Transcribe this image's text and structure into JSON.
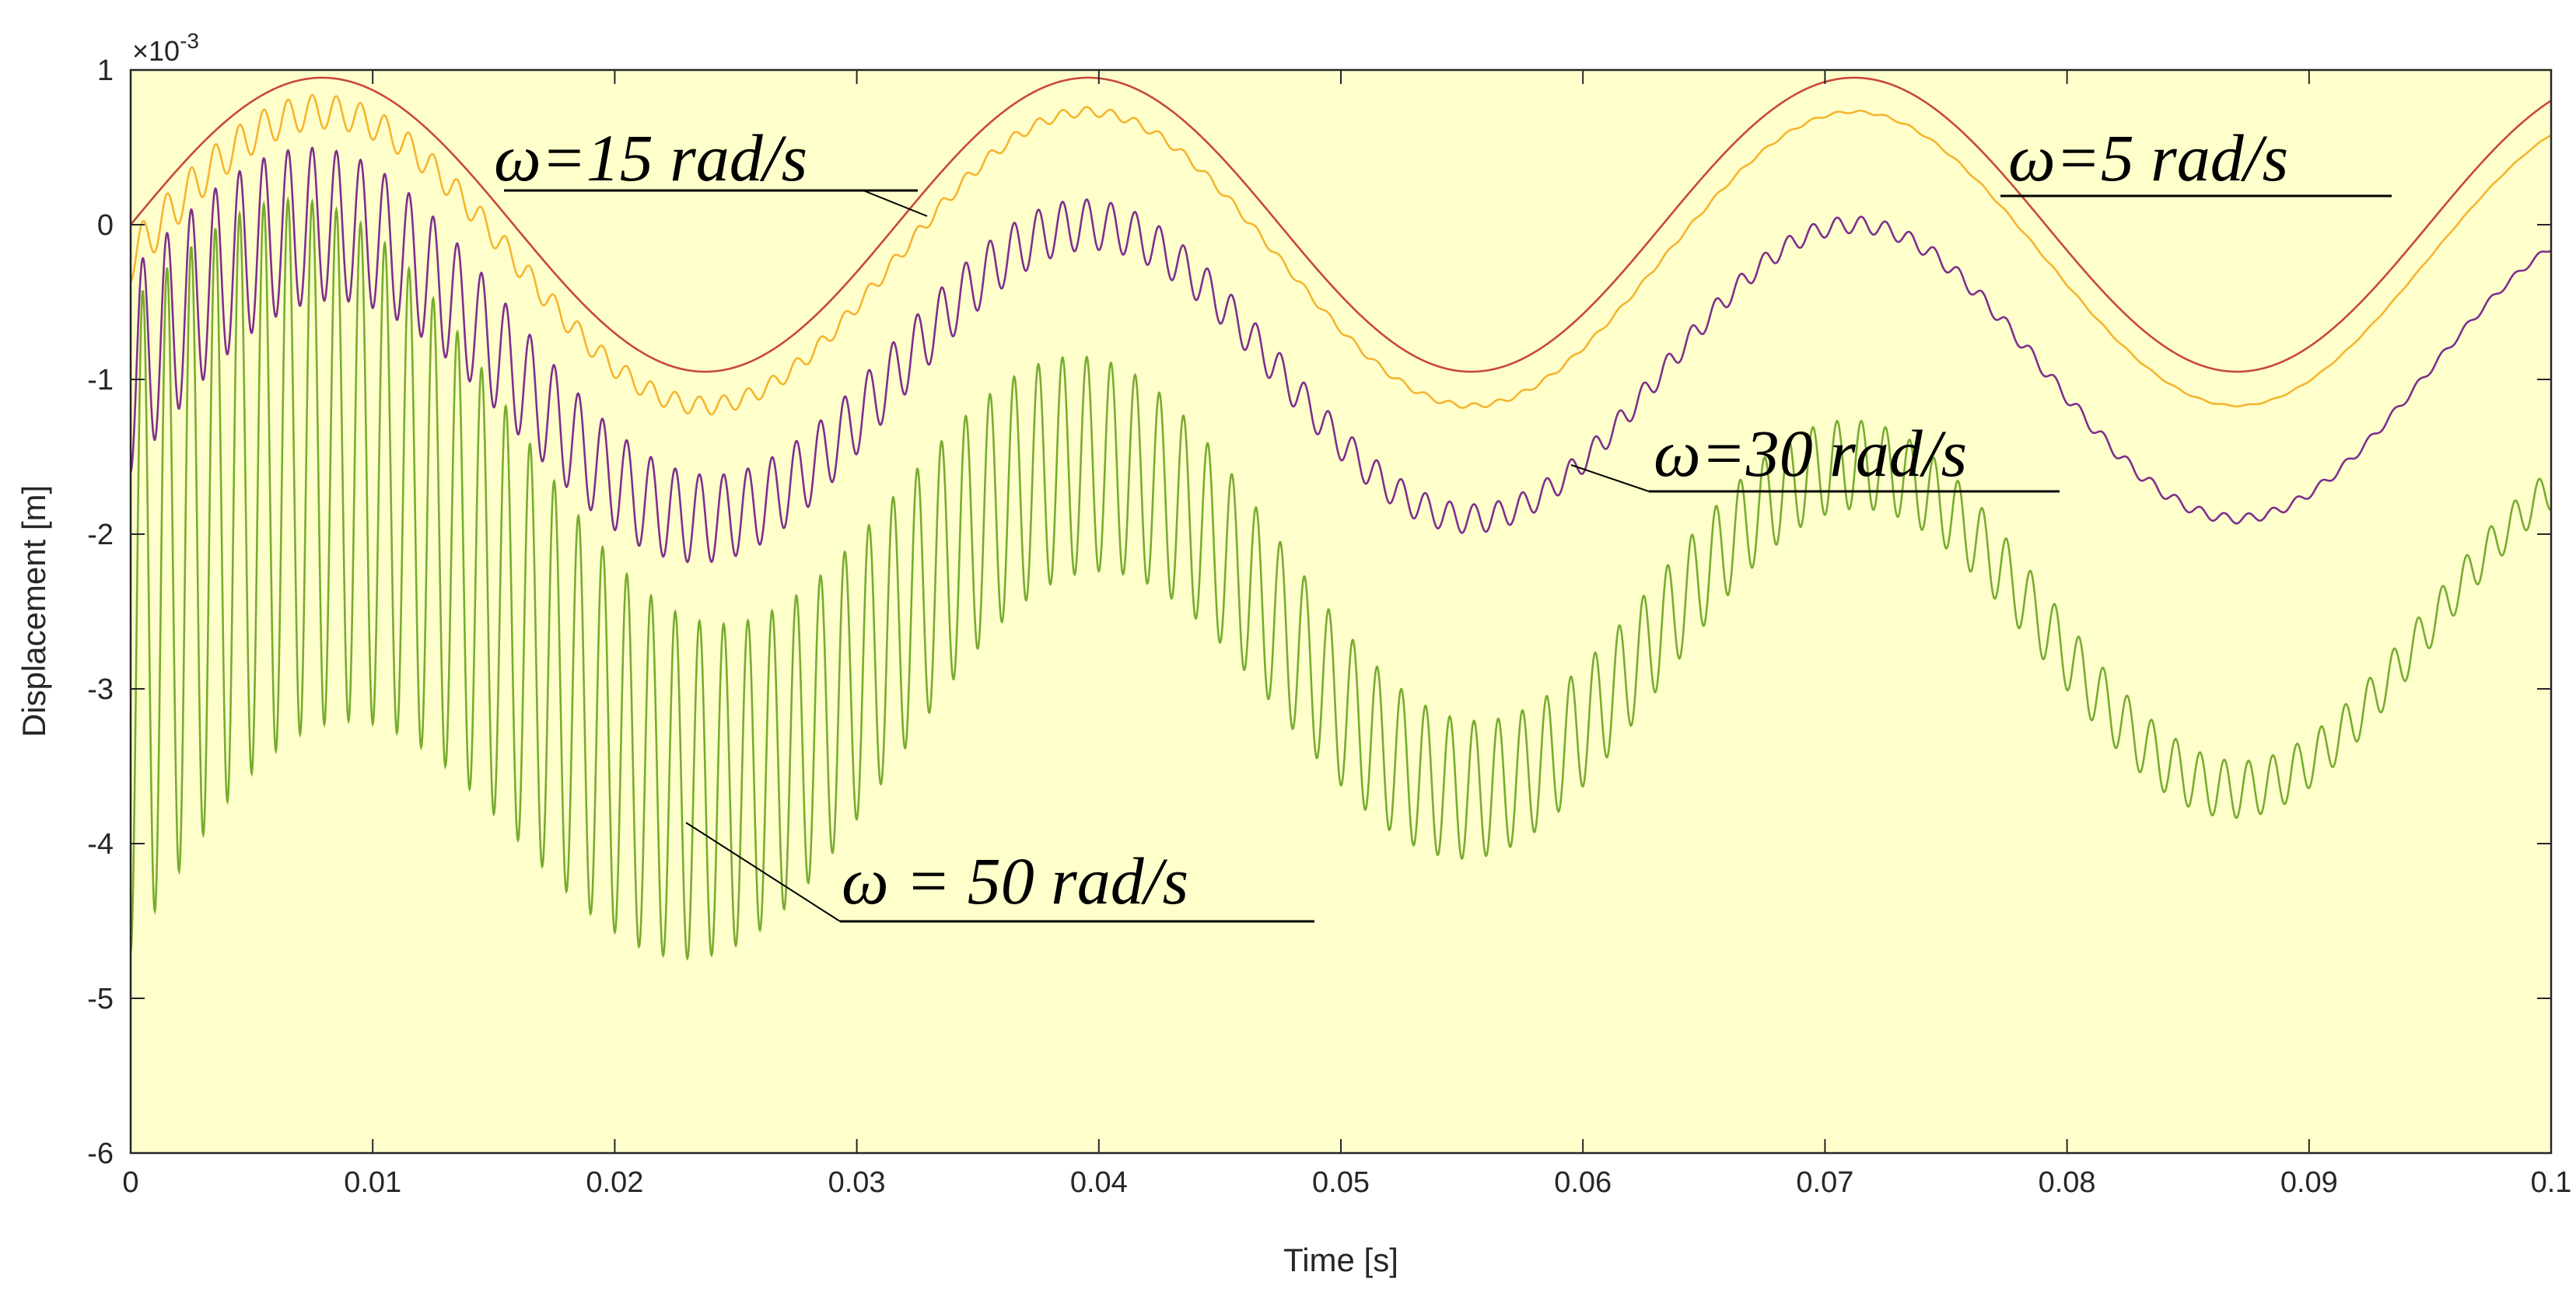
{
  "chart_data": {
    "type": "line",
    "title": "",
    "xlabel": "Time [s]",
    "ylabel": "Displacement [m]",
    "ylabel_multiplier": "×10",
    "ylabel_exponent": "-3",
    "xlim": [
      0,
      0.1
    ],
    "ylim": [
      -6,
      1
    ],
    "xticks": [
      "0",
      "0.01",
      "0.02",
      "0.03",
      "0.04",
      "0.05",
      "0.06",
      "0.07",
      "0.08",
      "0.09",
      "0.1"
    ],
    "yticks": [
      "1",
      "0",
      "-1",
      "-2",
      "-3",
      "-4",
      "-5",
      "-6"
    ],
    "grid": false,
    "background": "#ffffcc",
    "series": [
      {
        "name": "ω=5 rad/s",
        "color": "#c8483a",
        "forced_freq_hz": 31.6,
        "forced_amp": 0.95,
        "offset": 0.0,
        "phase": 0.0,
        "transient_amp": 0.0,
        "transient_freq_hz": 0,
        "transient_decay": 0
      },
      {
        "name": "ω=15 rad/s",
        "color": "#f5b52f",
        "forced_freq_hz": 31.6,
        "forced_amp": 0.95,
        "offset": -0.22,
        "phase": 0.0,
        "transient_amp": 0.15,
        "transient_freq_hz": 1000,
        "transient_decay": 40
      },
      {
        "name": "ω=30 rad/s",
        "color": "#7e2f8e",
        "forced_freq_hz": 31.6,
        "forced_amp": 0.95,
        "offset": -0.95,
        "phase": 0.0,
        "transient_amp": 0.65,
        "transient_freq_hz": 1000,
        "transient_decay": 35
      },
      {
        "name": "ω = 50 rad/s",
        "color": "#77ac30",
        "forced_freq_hz": 31.6,
        "forced_amp": 1.05,
        "offset": -2.6,
        "phase": 0.0,
        "transient_amp": 2.1,
        "transient_freq_hz": 1000,
        "transient_decay": 28
      }
    ],
    "annotations": [
      {
        "text": "ω=15 rad/s",
        "series": "ω=15 rad/s"
      },
      {
        "text": "ω=5 rad/s",
        "series": "ω=5 rad/s"
      },
      {
        "text": "ω=30 rad/s",
        "series": "ω=30 rad/s"
      },
      {
        "text": "ω = 50 rad/s",
        "series": "ω = 50 rad/s"
      }
    ]
  }
}
